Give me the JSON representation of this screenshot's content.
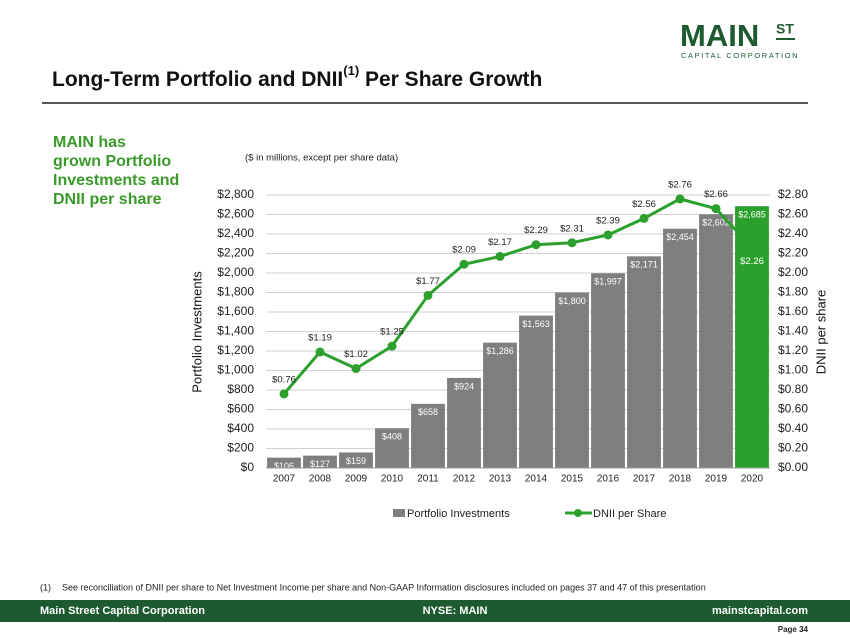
{
  "logo": {
    "main": "MAIN",
    "st": "ST",
    "sub": "CAPITAL CORPORATION"
  },
  "title": [
    "Long-Term Portfolio and DNII",
    "(1)",
    " Per Share Growth"
  ],
  "sidebar_lines": [
    "MAIN has",
    "grown Portfolio",
    "Investments and",
    "DNII per share"
  ],
  "chart_data": {
    "type": "bar_line",
    "subtitle": "($ in millions, except per share data)",
    "y_label": "Portfolio Investments",
    "y2_label": "DNII per share",
    "categories": [
      "2007",
      "2008",
      "2009",
      "2010",
      "2011",
      "2012",
      "2013",
      "2014",
      "2015",
      "2016",
      "2017",
      "2018",
      "2019",
      "2020"
    ],
    "series": [
      {
        "name": "Portfolio Investments",
        "color": "#7f7f7f",
        "colors": [
          "#7f7f7f",
          "#7f7f7f",
          "#7f7f7f",
          "#7f7f7f",
          "#7f7f7f",
          "#7f7f7f",
          "#7f7f7f",
          "#7f7f7f",
          "#7f7f7f",
          "#7f7f7f",
          "#7f7f7f",
          "#7f7f7f",
          "#7f7f7f",
          "#2ca02c"
        ],
        "values": [
          106,
          127,
          159,
          408,
          658,
          924,
          1286,
          1563,
          1800,
          1997,
          2171,
          2454,
          2602,
          2685
        ],
        "value_labels": [
          "$106",
          "$127",
          "$159",
          "$408",
          "$658",
          "$924",
          "$1,286",
          "$1,563",
          "$1,800",
          "$1,997",
          "$2,171",
          "$2,454",
          "$2,602",
          "$2,685"
        ]
      },
      {
        "name": "DNII per Share",
        "color": "#2ca02c",
        "axis": "y2",
        "values": [
          0.76,
          1.19,
          1.02,
          1.25,
          1.77,
          2.09,
          2.17,
          2.29,
          2.31,
          2.39,
          2.56,
          2.76,
          2.66,
          2.26
        ],
        "value_labels": [
          "$0.76",
          "$1.19",
          "$1.02",
          "$1.25",
          "$1.77",
          "$2.09",
          "$2.17",
          "$2.29",
          "$2.31",
          "$2.39",
          "$2.56",
          "$2.76",
          "$2.66",
          "$2.26"
        ]
      }
    ],
    "ylim": [
      0,
      2800
    ],
    "yticks": [
      {
        "value": 0,
        "label": "$0"
      },
      {
        "value": 200,
        "label": "$200"
      },
      {
        "value": 400,
        "label": "$400"
      },
      {
        "value": 600,
        "label": "$600"
      },
      {
        "value": 800,
        "label": "$800"
      },
      {
        "value": 1000,
        "label": "$1,000"
      },
      {
        "value": 1200,
        "label": "$1,200"
      },
      {
        "value": 1400,
        "label": "$1,400"
      },
      {
        "value": 1600,
        "label": "$1,600"
      },
      {
        "value": 1800,
        "label": "$1,800"
      },
      {
        "value": 2000,
        "label": "$2,000"
      },
      {
        "value": 2200,
        "label": "$2,200"
      },
      {
        "value": 2400,
        "label": "$2,400"
      },
      {
        "value": 2600,
        "label": "$2,600"
      },
      {
        "value": 2800,
        "label": "$2,800"
      }
    ],
    "y2lim": [
      0,
      2.8
    ],
    "y2ticks": [
      {
        "value": 0,
        "label": "$0.00"
      },
      {
        "value": 0.2,
        "label": "$0.20"
      },
      {
        "value": 0.4,
        "label": "$0.40"
      },
      {
        "value": 0.6,
        "label": "$0.60"
      },
      {
        "value": 0.8,
        "label": "$0.80"
      },
      {
        "value": 1,
        "label": "$1.00"
      },
      {
        "value": 1.2,
        "label": "$1.20"
      },
      {
        "value": 1.4,
        "label": "$1.40"
      },
      {
        "value": 1.6,
        "label": "$1.60"
      },
      {
        "value": 1.8,
        "label": "$1.80"
      },
      {
        "value": 2,
        "label": "$2.00"
      },
      {
        "value": 2.2,
        "label": "$2.20"
      },
      {
        "value": 2.4,
        "label": "$2.40"
      },
      {
        "value": 2.6,
        "label": "$2.60"
      },
      {
        "value": 2.8,
        "label": "$2.80"
      }
    ],
    "grid": true
  },
  "footnote": [
    "(1)",
    "See reconciliation of DNII per share to Net Investment Income per share and Non-GAAP Information disclosures included on pages 37 and 47 of this presentation"
  ],
  "footer": {
    "left": "Main Street Capital Corporation",
    "center": "NYSE: MAIN",
    "right": "mainstcapital.com",
    "page": "Page 34"
  }
}
